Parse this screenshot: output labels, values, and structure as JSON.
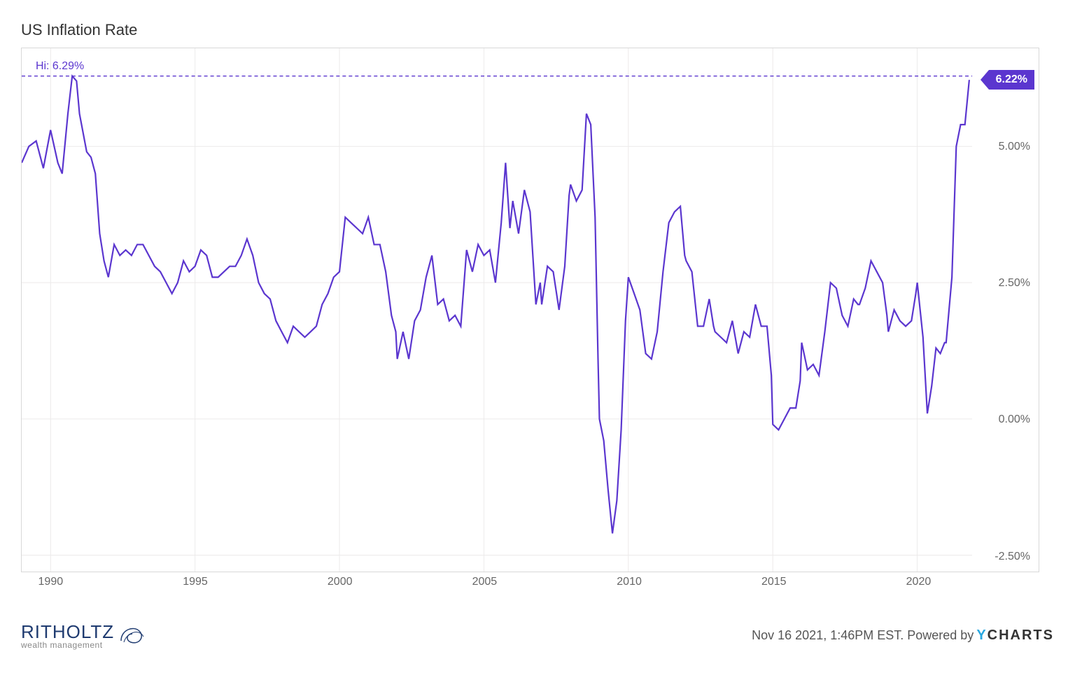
{
  "chart": {
    "type": "line",
    "title": "US Inflation Rate",
    "line_color": "#5b36cf",
    "line_width": 2.2,
    "background_color": "#ffffff",
    "grid_color": "#eceaea",
    "border_color": "#d8d8d8",
    "x_start_year": 1989,
    "x_end_year": 2021.9,
    "x_ticks": [
      1990,
      1995,
      2000,
      2005,
      2010,
      2015,
      2020
    ],
    "ylim": [
      -2.8,
      6.8
    ],
    "y_ticks": [
      {
        "v": -2.5,
        "label": "-2.50%"
      },
      {
        "v": 0.0,
        "label": "0.00%"
      },
      {
        "v": 2.5,
        "label": "2.50%"
      },
      {
        "v": 5.0,
        "label": "5.00%"
      }
    ],
    "hi_label": "Hi: 6.29%",
    "hi_value": 6.29,
    "last_value": 6.22,
    "last_label": "6.22%",
    "axis_font_size": 16,
    "axis_font_color": "#666666",
    "data": [
      [
        1989.0,
        4.7
      ],
      [
        1989.25,
        5.0
      ],
      [
        1989.5,
        5.1
      ],
      [
        1989.75,
        4.6
      ],
      [
        1990.0,
        5.3
      ],
      [
        1990.25,
        4.7
      ],
      [
        1990.4,
        4.5
      ],
      [
        1990.6,
        5.6
      ],
      [
        1990.75,
        6.29
      ],
      [
        1990.9,
        6.2
      ],
      [
        1991.0,
        5.6
      ],
      [
        1991.25,
        4.9
      ],
      [
        1991.4,
        4.8
      ],
      [
        1991.55,
        4.5
      ],
      [
        1991.7,
        3.4
      ],
      [
        1991.85,
        2.9
      ],
      [
        1992.0,
        2.6
      ],
      [
        1992.2,
        3.2
      ],
      [
        1992.4,
        3.0
      ],
      [
        1992.6,
        3.1
      ],
      [
        1992.8,
        3.0
      ],
      [
        1993.0,
        3.2
      ],
      [
        1993.2,
        3.2
      ],
      [
        1993.4,
        3.0
      ],
      [
        1993.6,
        2.8
      ],
      [
        1993.8,
        2.7
      ],
      [
        1994.0,
        2.5
      ],
      [
        1994.2,
        2.3
      ],
      [
        1994.4,
        2.5
      ],
      [
        1994.6,
        2.9
      ],
      [
        1994.8,
        2.7
      ],
      [
        1995.0,
        2.8
      ],
      [
        1995.2,
        3.1
      ],
      [
        1995.4,
        3.0
      ],
      [
        1995.6,
        2.6
      ],
      [
        1995.8,
        2.6
      ],
      [
        1996.0,
        2.7
      ],
      [
        1996.2,
        2.8
      ],
      [
        1996.4,
        2.8
      ],
      [
        1996.6,
        3.0
      ],
      [
        1996.8,
        3.3
      ],
      [
        1997.0,
        3.0
      ],
      [
        1997.2,
        2.5
      ],
      [
        1997.4,
        2.3
      ],
      [
        1997.6,
        2.2
      ],
      [
        1997.8,
        1.8
      ],
      [
        1998.0,
        1.6
      ],
      [
        1998.2,
        1.4
      ],
      [
        1998.4,
        1.7
      ],
      [
        1998.6,
        1.6
      ],
      [
        1998.8,
        1.5
      ],
      [
        1999.0,
        1.6
      ],
      [
        1999.2,
        1.7
      ],
      [
        1999.4,
        2.1
      ],
      [
        1999.6,
        2.3
      ],
      [
        1999.8,
        2.6
      ],
      [
        2000.0,
        2.7
      ],
      [
        2000.2,
        3.7
      ],
      [
        2000.4,
        3.6
      ],
      [
        2000.6,
        3.5
      ],
      [
        2000.8,
        3.4
      ],
      [
        2001.0,
        3.7
      ],
      [
        2001.2,
        3.2
      ],
      [
        2001.4,
        3.2
      ],
      [
        2001.6,
        2.7
      ],
      [
        2001.8,
        1.9
      ],
      [
        2001.95,
        1.6
      ],
      [
        2002.0,
        1.1
      ],
      [
        2002.2,
        1.6
      ],
      [
        2002.4,
        1.1
      ],
      [
        2002.6,
        1.8
      ],
      [
        2002.8,
        2.0
      ],
      [
        2003.0,
        2.6
      ],
      [
        2003.2,
        3.0
      ],
      [
        2003.4,
        2.1
      ],
      [
        2003.6,
        2.2
      ],
      [
        2003.8,
        1.8
      ],
      [
        2004.0,
        1.9
      ],
      [
        2004.2,
        1.7
      ],
      [
        2004.4,
        3.1
      ],
      [
        2004.6,
        2.7
      ],
      [
        2004.8,
        3.2
      ],
      [
        2005.0,
        3.0
      ],
      [
        2005.2,
        3.1
      ],
      [
        2005.4,
        2.5
      ],
      [
        2005.6,
        3.6
      ],
      [
        2005.75,
        4.7
      ],
      [
        2005.9,
        3.5
      ],
      [
        2006.0,
        4.0
      ],
      [
        2006.2,
        3.4
      ],
      [
        2006.4,
        4.2
      ],
      [
        2006.6,
        3.8
      ],
      [
        2006.8,
        2.1
      ],
      [
        2006.95,
        2.5
      ],
      [
        2007.0,
        2.1
      ],
      [
        2007.2,
        2.8
      ],
      [
        2007.4,
        2.7
      ],
      [
        2007.6,
        2.0
      ],
      [
        2007.8,
        2.8
      ],
      [
        2007.95,
        4.1
      ],
      [
        2008.0,
        4.3
      ],
      [
        2008.2,
        4.0
      ],
      [
        2008.4,
        4.2
      ],
      [
        2008.55,
        5.6
      ],
      [
        2008.7,
        5.4
      ],
      [
        2008.85,
        3.7
      ],
      [
        2008.95,
        1.1
      ],
      [
        2009.0,
        0.0
      ],
      [
        2009.15,
        -0.4
      ],
      [
        2009.3,
        -1.3
      ],
      [
        2009.45,
        -2.1
      ],
      [
        2009.6,
        -1.5
      ],
      [
        2009.75,
        -0.2
      ],
      [
        2009.9,
        1.8
      ],
      [
        2010.0,
        2.6
      ],
      [
        2010.2,
        2.3
      ],
      [
        2010.4,
        2.0
      ],
      [
        2010.6,
        1.2
      ],
      [
        2010.8,
        1.1
      ],
      [
        2011.0,
        1.6
      ],
      [
        2011.2,
        2.7
      ],
      [
        2011.4,
        3.6
      ],
      [
        2011.6,
        3.8
      ],
      [
        2011.8,
        3.9
      ],
      [
        2011.95,
        3.0
      ],
      [
        2012.0,
        2.9
      ],
      [
        2012.2,
        2.7
      ],
      [
        2012.4,
        1.7
      ],
      [
        2012.6,
        1.7
      ],
      [
        2012.8,
        2.2
      ],
      [
        2012.95,
        1.7
      ],
      [
        2013.0,
        1.6
      ],
      [
        2013.2,
        1.5
      ],
      [
        2013.4,
        1.4
      ],
      [
        2013.6,
        1.8
      ],
      [
        2013.8,
        1.2
      ],
      [
        2014.0,
        1.6
      ],
      [
        2014.2,
        1.5
      ],
      [
        2014.4,
        2.1
      ],
      [
        2014.6,
        1.7
      ],
      [
        2014.8,
        1.7
      ],
      [
        2014.95,
        0.8
      ],
      [
        2015.0,
        -0.1
      ],
      [
        2015.2,
        -0.2
      ],
      [
        2015.4,
        0.0
      ],
      [
        2015.6,
        0.2
      ],
      [
        2015.8,
        0.2
      ],
      [
        2015.95,
        0.7
      ],
      [
        2016.0,
        1.4
      ],
      [
        2016.2,
        0.9
      ],
      [
        2016.4,
        1.0
      ],
      [
        2016.6,
        0.8
      ],
      [
        2016.8,
        1.6
      ],
      [
        2017.0,
        2.5
      ],
      [
        2017.2,
        2.4
      ],
      [
        2017.4,
        1.9
      ],
      [
        2017.6,
        1.7
      ],
      [
        2017.8,
        2.2
      ],
      [
        2017.95,
        2.1
      ],
      [
        2018.0,
        2.1
      ],
      [
        2018.2,
        2.4
      ],
      [
        2018.4,
        2.9
      ],
      [
        2018.6,
        2.7
      ],
      [
        2018.8,
        2.5
      ],
      [
        2018.95,
        1.9
      ],
      [
        2019.0,
        1.6
      ],
      [
        2019.2,
        2.0
      ],
      [
        2019.4,
        1.8
      ],
      [
        2019.6,
        1.7
      ],
      [
        2019.8,
        1.8
      ],
      [
        2019.95,
        2.3
      ],
      [
        2020.0,
        2.5
      ],
      [
        2020.2,
        1.5
      ],
      [
        2020.35,
        0.1
      ],
      [
        2020.5,
        0.6
      ],
      [
        2020.65,
        1.3
      ],
      [
        2020.8,
        1.2
      ],
      [
        2020.95,
        1.4
      ],
      [
        2021.0,
        1.4
      ],
      [
        2021.2,
        2.6
      ],
      [
        2021.35,
        5.0
      ],
      [
        2021.5,
        5.4
      ],
      [
        2021.65,
        5.4
      ],
      [
        2021.8,
        6.22
      ]
    ]
  },
  "footer": {
    "logo_main": "RITHOLTZ",
    "logo_sub": "wealth management",
    "timestamp": "Nov 16 2021, 1:46PM EST. Powered by",
    "brand": "CHARTS"
  }
}
